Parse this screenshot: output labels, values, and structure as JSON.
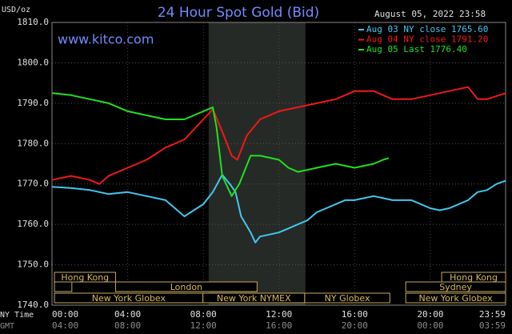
{
  "chart_data": {
    "type": "line",
    "title": "24 Hour Spot Gold (Bid)",
    "subtitle": "www.kitco.com",
    "y_label": "USD/oz",
    "timestamp": "August 05, 2022 23:58",
    "x_row_labels": [
      "NY Time",
      "GMT"
    ],
    "ylim": [
      1740,
      1810
    ],
    "yticks": [
      {
        "value": 1740,
        "label": "1740.0"
      },
      {
        "value": 1750,
        "label": "1750.0"
      },
      {
        "value": 1760,
        "label": "1760.0"
      },
      {
        "value": 1770,
        "label": "1770.0"
      },
      {
        "value": 1780,
        "label": "1780.0"
      },
      {
        "value": 1790,
        "label": "1790.0"
      },
      {
        "value": 1800,
        "label": "1800.0"
      },
      {
        "value": 1810,
        "label": "1810.0"
      }
    ],
    "xlim": [
      0,
      23.98
    ],
    "xticks": [
      {
        "value": 0,
        "label": "00:00"
      },
      {
        "value": 4,
        "label": "04:00"
      },
      {
        "value": 8,
        "label": "08:00"
      },
      {
        "value": 12,
        "label": "12:00"
      },
      {
        "value": 16,
        "label": "16:00"
      },
      {
        "value": 20,
        "label": "20:00"
      },
      {
        "value": 23.98,
        "label": "23:59"
      }
    ],
    "x2tick_labels": [
      "04:00",
      "08:00",
      "12:00",
      "16:00",
      "20:00",
      "00:00",
      "03:59"
    ],
    "grid": true,
    "shaded_range": [
      8.28,
      13.4
    ],
    "sessions": [
      {
        "name": "Hong Kong",
        "start": 0.13,
        "end": 3.36
      },
      {
        "name": null,
        "start": 0.13,
        "end": 1.05
      },
      {
        "name": "London",
        "start": 3.36,
        "end": 10.84
      },
      {
        "name": "New York Globex",
        "start": 0.13,
        "end": 7.98
      },
      {
        "name": "New York NYMEX",
        "start": 7.98,
        "end": 13.36
      },
      {
        "name": "NY Globex",
        "start": 13.36,
        "end": 17.86
      },
      {
        "name": "New York Globex",
        "start": 18.7,
        "end": 23.98
      },
      {
        "name": "Sydney",
        "start": 18.7,
        "end": 23.98
      },
      {
        "name": "Hong Kong",
        "start": 20.6,
        "end": 23.98
      }
    ],
    "series": [
      {
        "name": "Aug 03 NY close 1765.60",
        "color": "#40c8f0",
        "x": [
          0,
          1,
          2,
          3,
          4,
          5,
          6,
          6.5,
          7,
          7.5,
          8,
          8.5,
          9,
          9.4,
          9.7,
          10,
          10.5,
          10.75,
          11,
          11.5,
          12,
          12.5,
          13,
          13.5,
          14,
          14.5,
          15,
          15.5,
          16,
          17,
          18,
          19,
          20,
          20.5,
          21,
          21.5,
          22,
          22.5,
          23,
          23.5,
          23.98
        ],
        "values": [
          1769.3,
          1769,
          1768.5,
          1767.5,
          1768,
          1767,
          1766,
          1764,
          1762,
          1763.5,
          1765,
          1768,
          1772.3,
          1770,
          1768,
          1762,
          1758,
          1755.5,
          1757,
          1757.5,
          1758,
          1759,
          1760,
          1761,
          1763,
          1764,
          1765,
          1766,
          1766,
          1767,
          1766,
          1766,
          1764,
          1763.5,
          1764,
          1765,
          1766,
          1768,
          1768.5,
          1770,
          1770.8
        ]
      },
      {
        "name": "Aug 04 NY close 1791.20",
        "color": "#f01818",
        "x": [
          0,
          1,
          2,
          2.5,
          3,
          4,
          5,
          6,
          7,
          8,
          8.5,
          9,
          9.5,
          9.8,
          10.3,
          11,
          12,
          13,
          14,
          15,
          16,
          17,
          18,
          19,
          20,
          21,
          22,
          22.5,
          23,
          23.98
        ],
        "values": [
          1771,
          1772,
          1771,
          1770,
          1772,
          1774,
          1776,
          1779,
          1781,
          1786,
          1788.5,
          1783,
          1777,
          1776,
          1782,
          1786,
          1788,
          1789,
          1790,
          1791,
          1793,
          1793,
          1791,
          1791,
          1792,
          1793,
          1794,
          1791,
          1791,
          1792.5
        ]
      },
      {
        "name": "Aug 05 Last 1776.40",
        "color": "#20e020",
        "x": [
          0,
          1,
          2,
          3,
          4,
          5,
          6,
          7,
          7.5,
          8,
          8.5,
          8.7,
          9,
          9.5,
          9.9,
          10.5,
          11,
          12,
          12.5,
          13,
          14,
          15,
          16,
          17,
          17.5,
          17.8
        ],
        "values": [
          1792.5,
          1792,
          1791,
          1790,
          1788,
          1787,
          1786,
          1786,
          1787,
          1788,
          1789,
          1784,
          1772,
          1767,
          1770,
          1777,
          1777,
          1776,
          1774,
          1773,
          1774,
          1775,
          1774,
          1775,
          1776,
          1776.4
        ]
      }
    ]
  }
}
